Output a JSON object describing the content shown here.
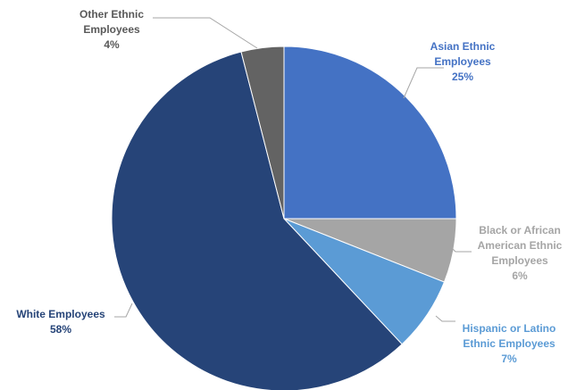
{
  "chart_data": {
    "type": "pie",
    "title": "",
    "legend": "none",
    "slices": [
      {
        "label_lines": [
          "Asian Ethnic",
          "Employees"
        ],
        "pct_label": "25%",
        "value": 25,
        "color": "#4472C4",
        "label_color": "#4472C4"
      },
      {
        "label_lines": [
          "Black or African",
          "American Ethnic",
          "Employees"
        ],
        "pct_label": "6%",
        "value": 6,
        "color": "#A5A5A5",
        "label_color": "#A5A5A5"
      },
      {
        "label_lines": [
          "Hispanic or Latino",
          "Ethnic Employees"
        ],
        "pct_label": "7%",
        "value": 7,
        "color": "#5B9BD5",
        "label_color": "#5B9BD5"
      },
      {
        "label_lines": [
          "White Employees"
        ],
        "pct_label": "58%",
        "value": 58,
        "color": "#264478",
        "label_color": "#264478"
      },
      {
        "label_lines": [
          "Other Ethnic",
          "Employees"
        ],
        "pct_label": "4%",
        "value": 4,
        "color": "#636363",
        "label_color": "#595959"
      }
    ]
  }
}
